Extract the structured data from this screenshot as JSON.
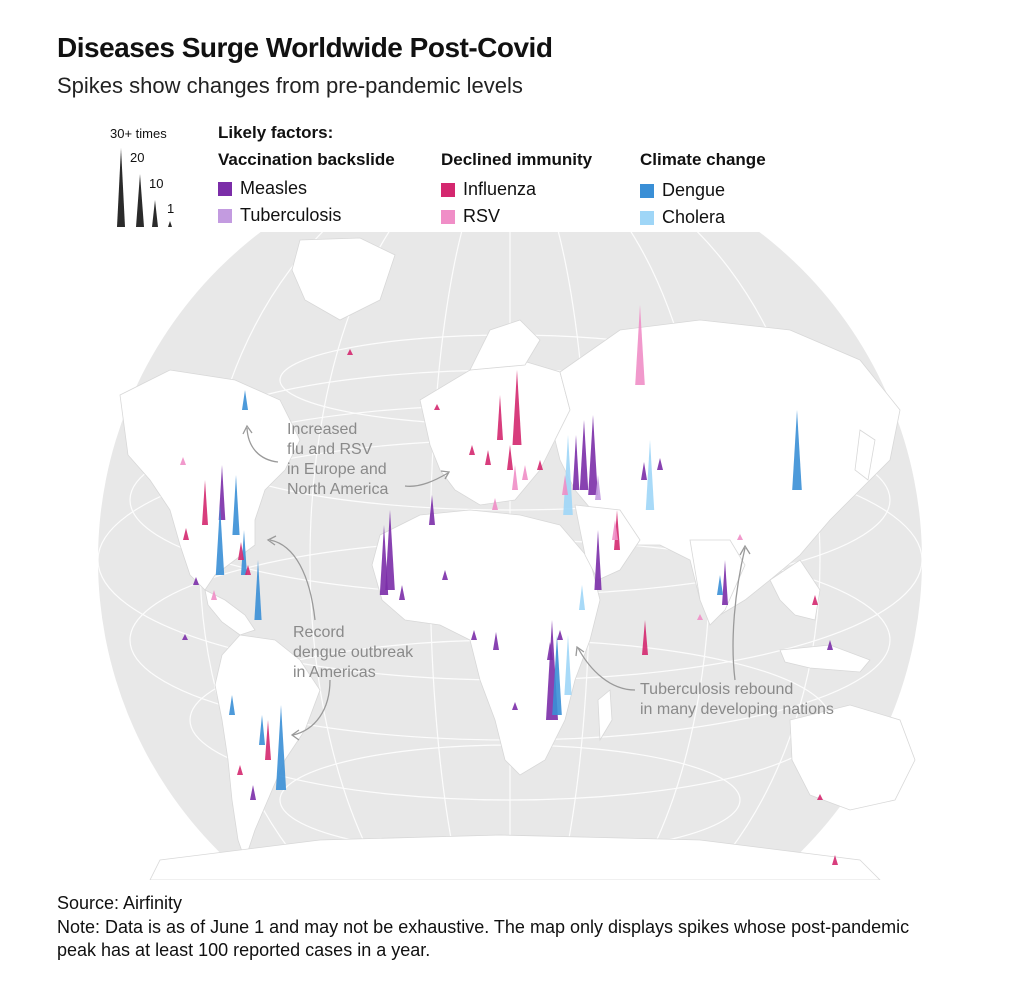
{
  "title": "Diseases Surge Worldwide Post-Covid",
  "subtitle": "Spikes show changes from pre-pandemic levels",
  "scale": {
    "labels": [
      "30+ times",
      "20",
      "10",
      "1"
    ]
  },
  "legend": {
    "heading": "Likely factors:",
    "groups": [
      {
        "name": "Vaccination backslide",
        "items": [
          {
            "label": "Measles",
            "color": "#7b2da8"
          },
          {
            "label": "Tuberculosis",
            "color": "#c39be0"
          }
        ]
      },
      {
        "name": "Declined immunity",
        "items": [
          {
            "label": "Influenza",
            "color": "#d4286f"
          },
          {
            "label": "RSV",
            "color": "#f08ec7"
          }
        ]
      },
      {
        "name": "Climate change",
        "items": [
          {
            "label": "Dengue",
            "color": "#3a8fd6"
          },
          {
            "label": "Cholera",
            "color": "#9fd6f7"
          }
        ]
      }
    ]
  },
  "annotations": {
    "europe": [
      "Increased",
      "flu and RSV",
      "in Europe and",
      "North America"
    ],
    "americas": [
      "Record",
      "dengue outbreak",
      "in Americas"
    ],
    "tb": [
      "Tuberculosis rebound",
      "in many developing nations"
    ]
  },
  "source": "Source: Airfinity",
  "note": "Note: Data is as of June 1 and may not be exhaustive. The map only displays spikes whose post-pandemic peak has at least 100 reported cases in a year."
}
